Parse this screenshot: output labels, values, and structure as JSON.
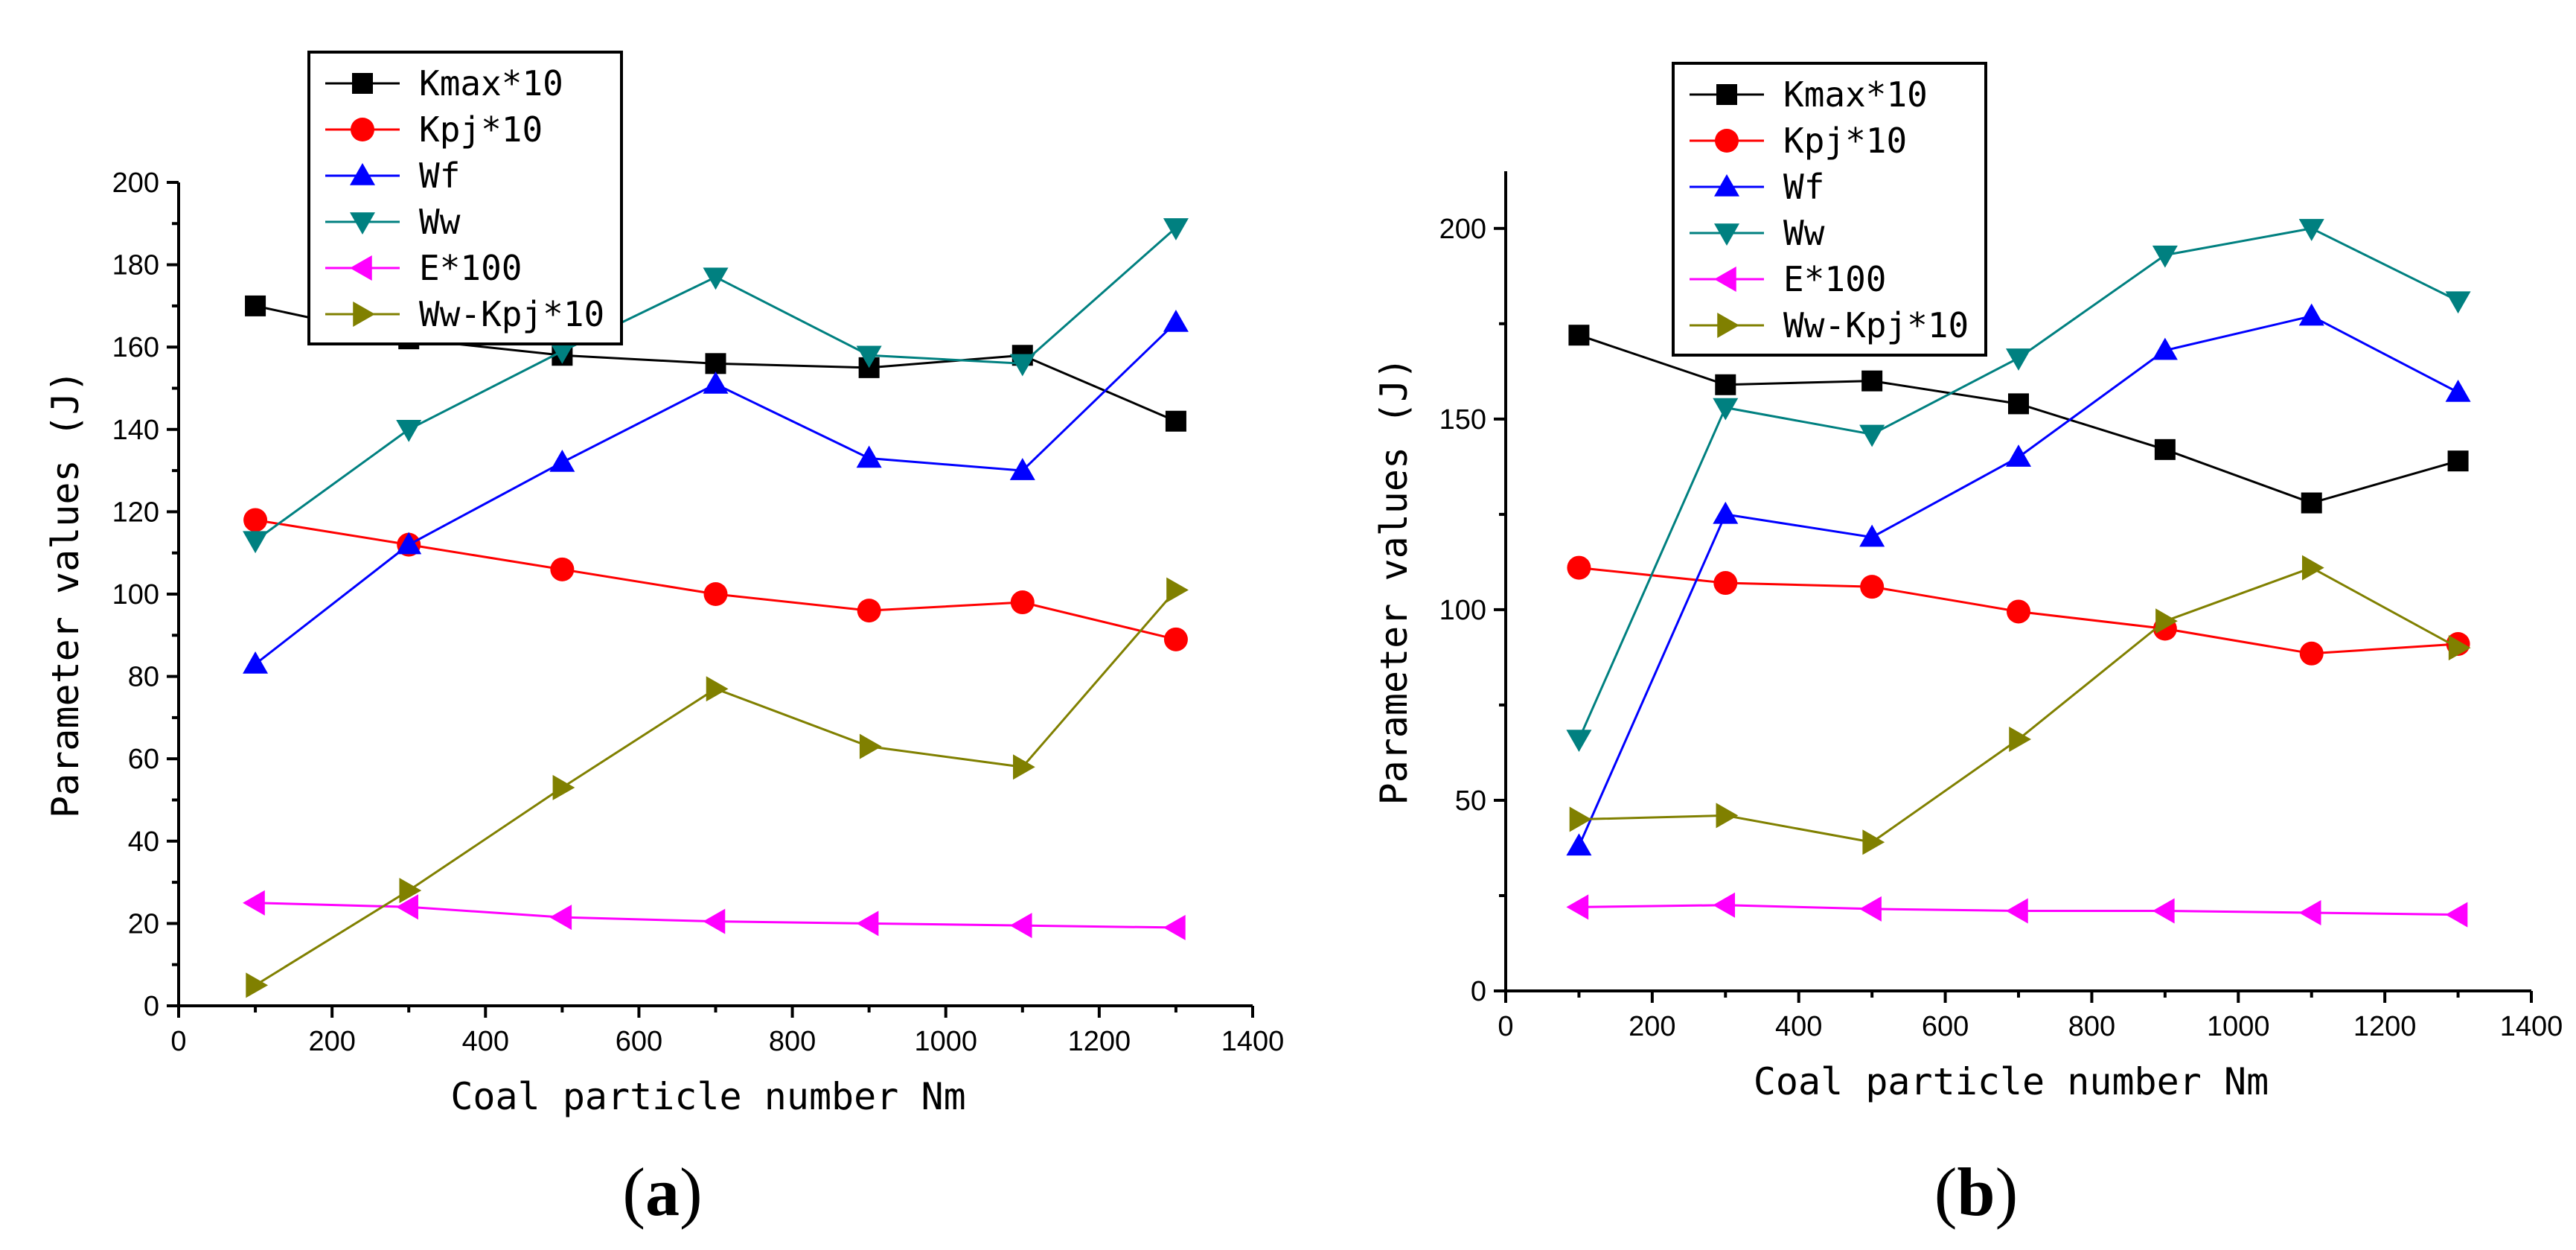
{
  "chart_data": [
    {
      "type": "line",
      "panel": "a",
      "xlabel": "Coal particle number Nm",
      "ylabel": "Parameter values (J)",
      "xlim": [
        0,
        1400
      ],
      "ylim": [
        0,
        200
      ],
      "xticks": [
        0,
        200,
        400,
        600,
        800,
        1000,
        1200,
        1400
      ],
      "yticks": [
        0,
        20,
        40,
        60,
        80,
        100,
        120,
        140,
        160,
        180,
        200
      ],
      "legend_position": "top-left",
      "x": [
        100,
        300,
        500,
        700,
        900,
        1100,
        1300
      ],
      "series": [
        {
          "name": "Kmax*10",
          "color": "#000000",
          "marker": "square",
          "values": [
            170,
            162,
            158,
            156,
            155,
            158,
            142
          ]
        },
        {
          "name": "Kpj*10",
          "color": "#ff0000",
          "marker": "circle",
          "values": [
            118,
            112,
            106,
            100,
            96,
            98,
            89
          ]
        },
        {
          "name": "Wf",
          "color": "#0000ff",
          "marker": "triangle-up",
          "values": [
            83,
            112,
            132,
            151,
            133,
            130,
            166
          ]
        },
        {
          "name": "Ww",
          "color": "#008080",
          "marker": "triangle-down",
          "values": [
            113,
            140,
            159,
            177,
            158,
            156,
            189
          ]
        },
        {
          "name": "E*100",
          "color": "#ff00ff",
          "marker": "triangle-left",
          "values": [
            25,
            24,
            21.5,
            20.5,
            20,
            19.5,
            19
          ]
        },
        {
          "name": "Ww-Kpj*10",
          "color": "#808000",
          "marker": "triangle-right",
          "values": [
            5,
            28,
            53,
            77,
            63,
            58,
            101
          ]
        }
      ]
    },
    {
      "type": "line",
      "panel": "b",
      "xlabel": "Coal particle number Nm",
      "ylabel": "Parameter values (J)",
      "xlim": [
        0,
        1400
      ],
      "ylim": [
        0,
        215
      ],
      "xticks": [
        0,
        200,
        400,
        600,
        800,
        1000,
        1200,
        1400
      ],
      "yticks": [
        0,
        50,
        100,
        150,
        200
      ],
      "legend_position": "top-left",
      "x": [
        100,
        300,
        500,
        700,
        900,
        1100,
        1300
      ],
      "series": [
        {
          "name": "Kmax*10",
          "color": "#000000",
          "marker": "square",
          "values": [
            172,
            159,
            160,
            154,
            142,
            128,
            139
          ]
        },
        {
          "name": "Kpj*10",
          "color": "#ff0000",
          "marker": "circle",
          "values": [
            111,
            107,
            106,
            99.5,
            95,
            88.5,
            91
          ]
        },
        {
          "name": "Wf",
          "color": "#0000ff",
          "marker": "triangle-up",
          "values": [
            38,
            125,
            119,
            140,
            168,
            177,
            157
          ]
        },
        {
          "name": "Ww",
          "color": "#008080",
          "marker": "triangle-down",
          "values": [
            66,
            153,
            146,
            166,
            193,
            200,
            181
          ]
        },
        {
          "name": "E*100",
          "color": "#ff00ff",
          "marker": "triangle-left",
          "values": [
            22,
            22.5,
            21.5,
            21,
            21,
            20.5,
            20
          ]
        },
        {
          "name": "Ww-Kpj*10",
          "color": "#808000",
          "marker": "triangle-right",
          "values": [
            45,
            46,
            39,
            66,
            97,
            111,
            90
          ]
        }
      ]
    }
  ],
  "panel_labels": [
    {
      "open": "(",
      "letter": "a",
      "close": ")"
    },
    {
      "open": "(",
      "letter": "b",
      "close": ")"
    }
  ]
}
